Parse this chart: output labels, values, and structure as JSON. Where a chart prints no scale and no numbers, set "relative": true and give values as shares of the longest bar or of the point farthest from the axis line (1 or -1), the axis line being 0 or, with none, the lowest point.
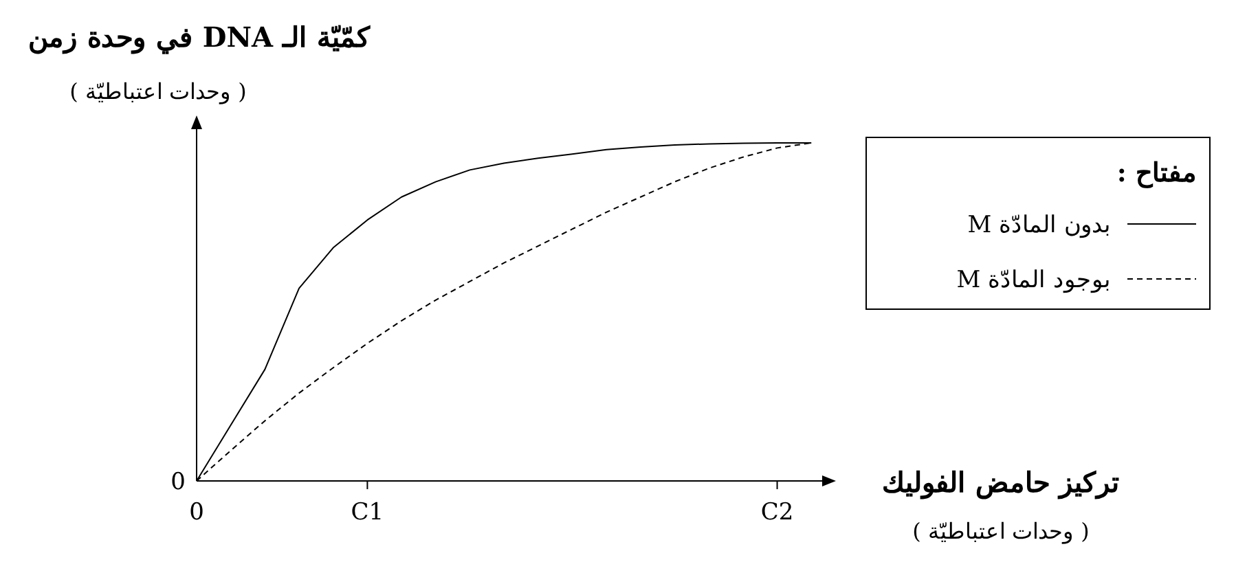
{
  "chart_data": {
    "type": "line",
    "relative": true,
    "ylabel": "كمّيّة الـ DNA في وحدة زمن",
    "xlabel": "تركيز حامض الفوليك",
    "annotations": [
      "( وحدات اعتباطيّة )",
      "( وحدات اعتباطيّة )",
      "0"
    ],
    "legend_title": "مفتاح :",
    "legend": "right",
    "categories": [
      "0",
      null,
      null,
      null,
      null,
      "C1",
      null,
      null,
      null,
      null,
      null,
      null,
      null,
      null,
      null,
      null,
      null,
      "C2",
      null
    ],
    "series": [
      {
        "name": "بدون المادّة M",
        "color": "#000000",
        "line_style": "solid",
        "values": [
          0,
          0.165,
          0.33,
          0.57,
          0.69,
          0.772,
          0.84,
          0.885,
          0.92,
          0.94,
          0.955,
          0.967,
          0.98,
          0.988,
          0.994,
          0.997,
          0.999,
          1,
          1
        ]
      },
      {
        "name": "بوجود المادّة M",
        "color": "#000000",
        "line_style": "dashed",
        "values": [
          0,
          0.09,
          0.178,
          0.26,
          0.335,
          0.407,
          0.474,
          0.535,
          0.59,
          0.645,
          0.695,
          0.745,
          0.795,
          0.84,
          0.885,
          0.925,
          0.958,
          0.985,
          1
        ]
      }
    ]
  }
}
